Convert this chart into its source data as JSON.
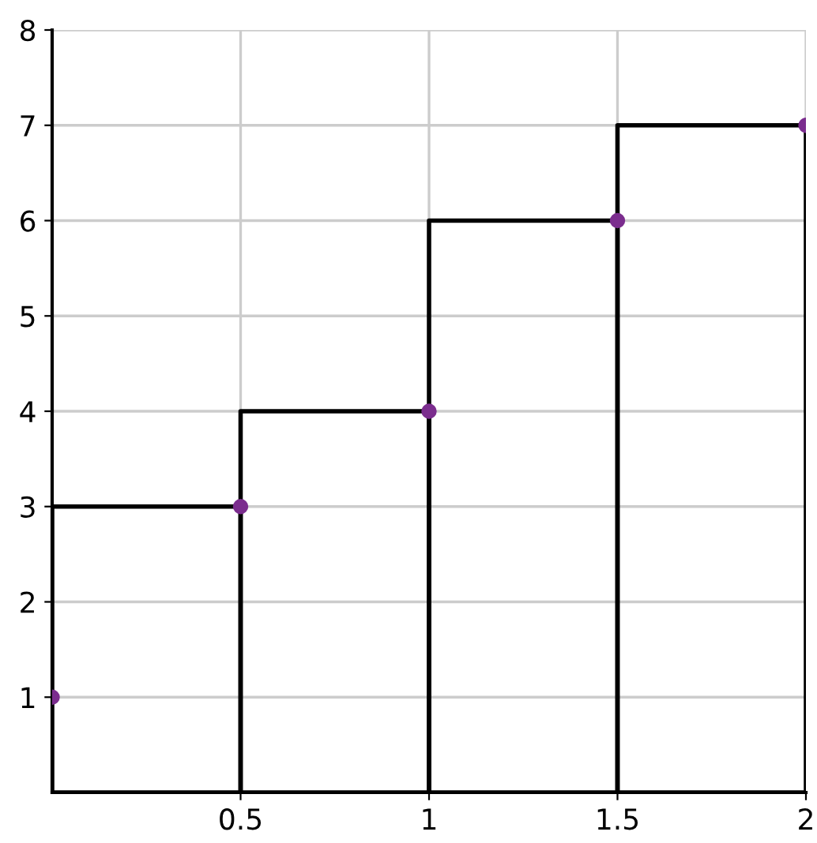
{
  "chart_data": {
    "type": "scatter",
    "xlim": [
      0,
      2
    ],
    "ylim": [
      0,
      8
    ],
    "xticks": [
      0.5,
      1,
      1.5,
      2
    ],
    "yticks": [
      1,
      2,
      3,
      4,
      5,
      6,
      7,
      8
    ],
    "grid": true,
    "marker": "circle",
    "series": [
      {
        "type": "bar",
        "color": "#000000",
        "x": [
          0.25,
          0.75,
          1.25,
          1.75
        ],
        "values": [
          3,
          4,
          6,
          7
        ]
      },
      {
        "color": "#7b2d8e",
        "x": [
          0,
          0.5,
          1,
          1.5,
          2
        ],
        "values": [
          1,
          3,
          4,
          6,
          7
        ]
      }
    ]
  }
}
